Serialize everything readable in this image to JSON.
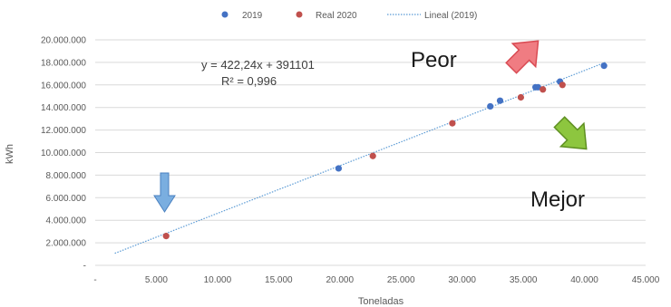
{
  "chart_data": {
    "type": "scatter",
    "xlabel": "Toneladas",
    "ylabel": "kWh",
    "xlim": [
      0,
      45000
    ],
    "ylim": [
      0,
      20000000
    ],
    "x_ticks": [
      0,
      5000,
      10000,
      15000,
      20000,
      25000,
      30000,
      35000,
      40000,
      45000
    ],
    "x_tick_labels": [
      "-",
      "5.000",
      "10.000",
      "15.000",
      "20.000",
      "25.000",
      "30.000",
      "35.000",
      "40.000",
      "45.000"
    ],
    "y_ticks": [
      0,
      2000000,
      4000000,
      6000000,
      8000000,
      10000000,
      12000000,
      14000000,
      16000000,
      18000000,
      20000000
    ],
    "y_tick_labels": [
      "-",
      "2.000.000",
      "4.000.000",
      "6.000.000",
      "8.000.000",
      "10.000.000",
      "12.000.000",
      "14.000.000",
      "16.000.000",
      "18.000.000",
      "20.000.000"
    ],
    "grid": "horizontal",
    "legend_position": "top",
    "series": [
      {
        "name": "2019",
        "color": "#4472c4",
        "x": [
          19900,
          32300,
          33100,
          36000,
          36200,
          38000,
          41600
        ],
        "y": [
          8600000,
          14100000,
          14600000,
          15800000,
          15800000,
          16300000,
          17700000
        ]
      },
      {
        "name": "Real 2020",
        "color": "#c0504d",
        "x": [
          5800,
          22700,
          29200,
          34800,
          36600,
          38200
        ],
        "y": [
          2600000,
          9700000,
          12600000,
          14900000,
          15600000,
          16000000
        ]
      }
    ],
    "trendline": {
      "name": "Lineal (2019)",
      "color": "#5b9bd5",
      "slope": 422.24,
      "intercept": 391101,
      "x_range": [
        1600,
        41800
      ],
      "equation": "y = 422,24x + 391101",
      "r_squared": "R² = 0,996"
    },
    "annotations": {
      "worse_label": "Peor",
      "better_label": "Mejor",
      "worse_arrow_color": "#e8636b",
      "better_arrow_color": "#7fb539",
      "down_arrow_color": "#5b9bd5"
    }
  }
}
